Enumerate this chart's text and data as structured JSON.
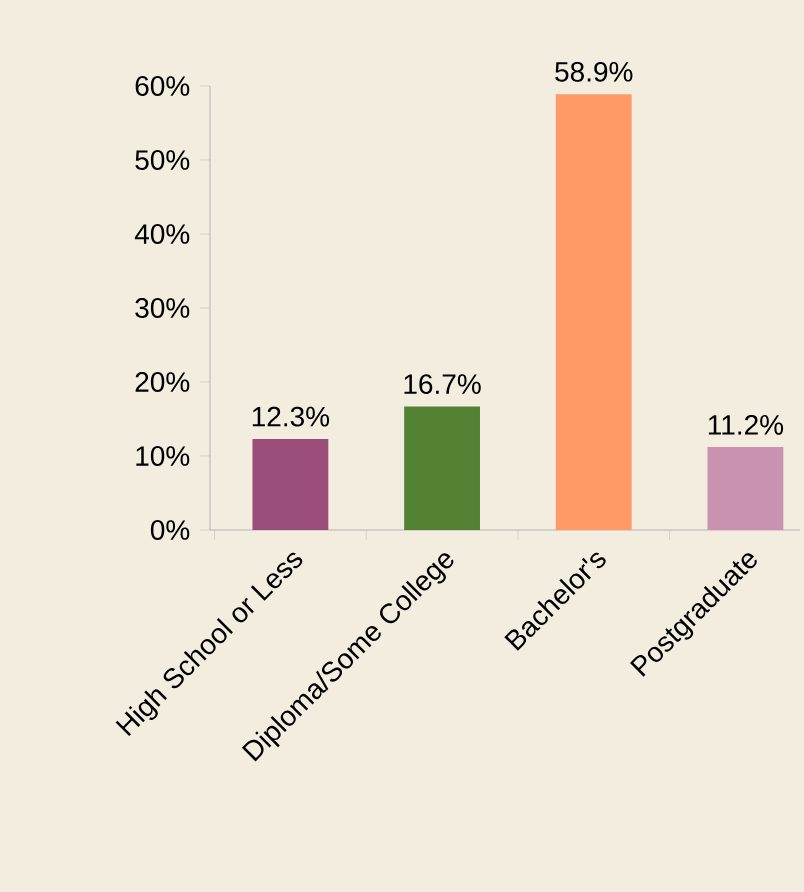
{
  "chart_data": {
    "type": "bar",
    "categories": [
      "High School or Less",
      "Diploma/Some College",
      "Bachelor's",
      "Postgraduate"
    ],
    "values": [
      12.3,
      16.7,
      58.9,
      11.2
    ],
    "colors": [
      "#9a4d78",
      "#548235",
      "#ff9966",
      "#c992b0"
    ],
    "value_labels": [
      "12.3%",
      "16.7%",
      "58.9%",
      "11.2%"
    ],
    "ylim": [
      0,
      60
    ],
    "yticks": [
      {
        "value": 0,
        "label": "0%"
      },
      {
        "value": 10,
        "label": "10%"
      },
      {
        "value": 20,
        "label": "20%"
      },
      {
        "value": 30,
        "label": "30%"
      },
      {
        "value": 40,
        "label": "40%"
      },
      {
        "value": 50,
        "label": "50%"
      },
      {
        "value": 60,
        "label": "60%"
      }
    ]
  }
}
